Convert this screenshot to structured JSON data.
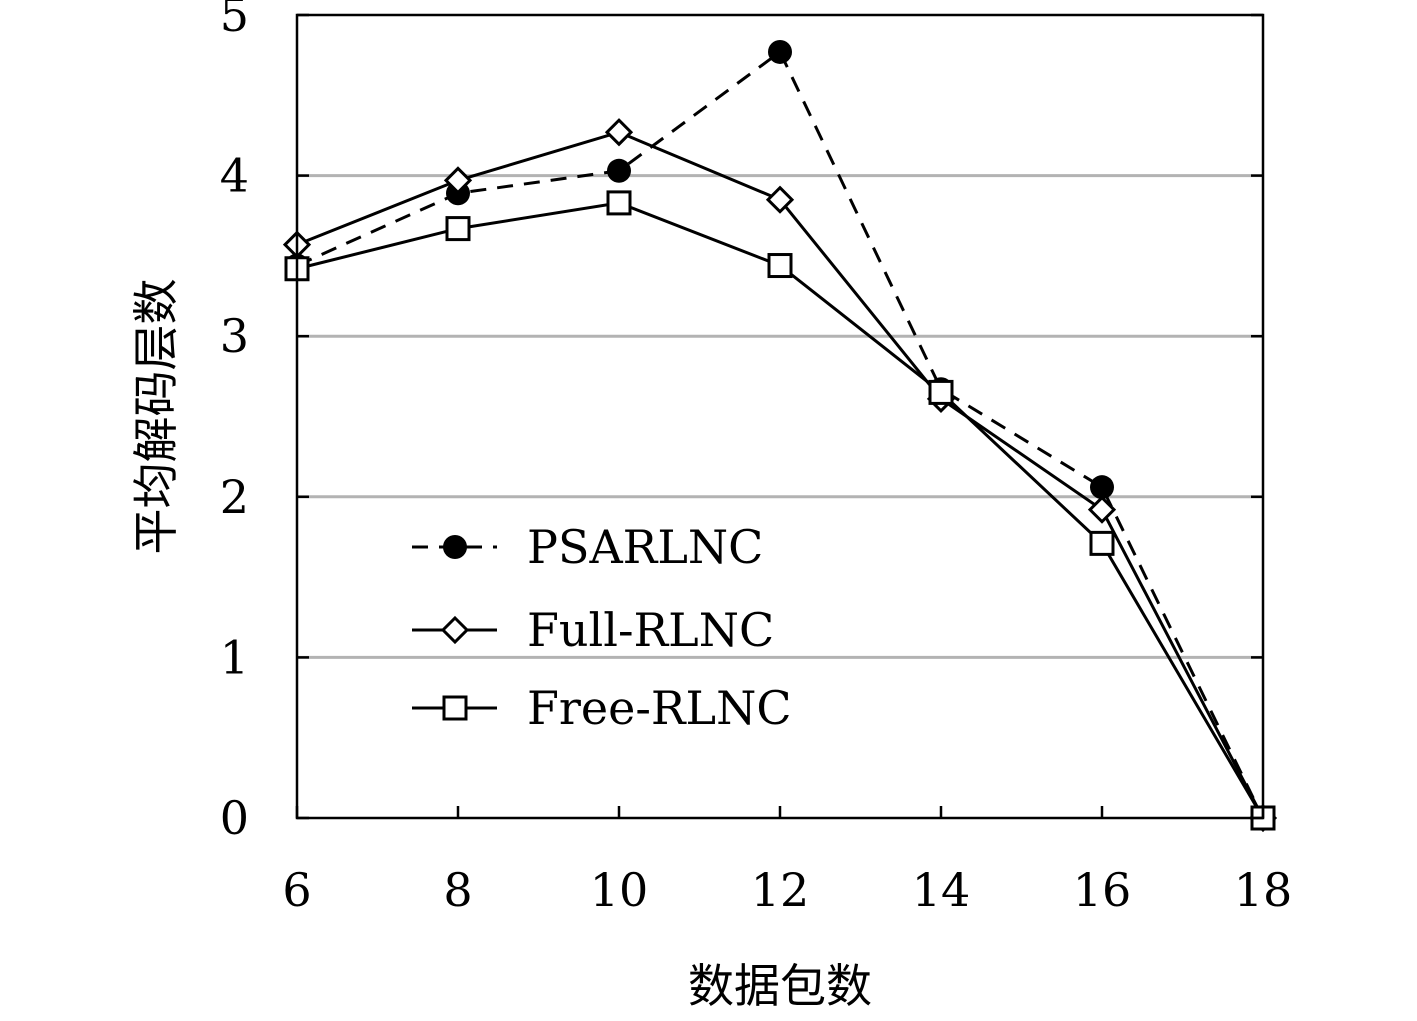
{
  "chart_data": {
    "type": "line",
    "xlabel": "数据包数",
    "ylabel": "平均解码层数",
    "x": [
      6,
      8,
      10,
      12,
      14,
      16,
      18
    ],
    "xlim": [
      6,
      18
    ],
    "ylim": [
      0,
      5
    ],
    "xticks": [
      6,
      8,
      10,
      12,
      14,
      16,
      18
    ],
    "yticks": [
      0,
      1,
      2,
      3,
      4,
      5
    ],
    "grid": "horizontal",
    "legend_position": "lower-left",
    "series": [
      {
        "name": "PSARLNC",
        "values": [
          3.44,
          3.89,
          4.03,
          4.77,
          2.67,
          2.06,
          0.0
        ],
        "line_style": "dashed",
        "marker": "filled-circle"
      },
      {
        "name": "Full-RLNC",
        "values": [
          3.57,
          3.97,
          4.27,
          3.85,
          2.61,
          1.92,
          0.0
        ],
        "line_style": "solid",
        "marker": "open-diamond"
      },
      {
        "name": "Free-RLNC",
        "values": [
          3.42,
          3.67,
          3.83,
          3.44,
          2.65,
          1.71,
          0.0
        ],
        "line_style": "solid",
        "marker": "open-square"
      }
    ]
  }
}
